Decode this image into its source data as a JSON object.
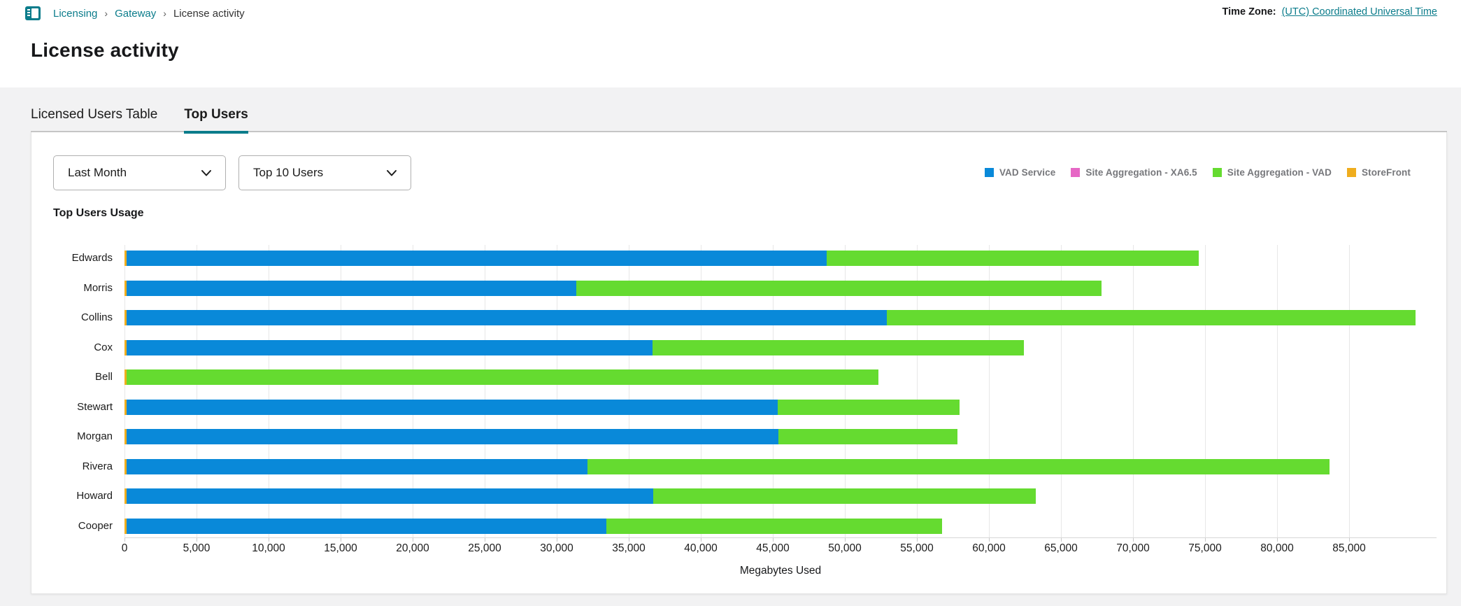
{
  "breadcrumb": {
    "separator": "›",
    "items": [
      {
        "label": "Licensing"
      },
      {
        "label": "Gateway"
      },
      {
        "label": "License activity"
      }
    ]
  },
  "timezone": {
    "label": "Time Zone:",
    "value": "(UTC) Coordinated Universal Time"
  },
  "page_title": "License activity",
  "tabs": [
    {
      "label": "Licensed Users Table",
      "active": false
    },
    {
      "label": "Top Users",
      "active": true
    }
  ],
  "filters": {
    "period": "Last Month",
    "top_users": "Top 10 Users"
  },
  "colors": {
    "accent_teal": "#0B7C8B",
    "vad_service_blue": "#0989D9",
    "site_agg_xa65_pink": "#E667C5",
    "site_agg_vad_green": "#65DB30",
    "storefront_amber": "#EFAD1E"
  },
  "chart_data": {
    "type": "bar",
    "orientation": "horizontal",
    "stacked": true,
    "title": "Top Users Usage",
    "xlabel": "Megabytes Used",
    "xlim": [
      0,
      91000
    ],
    "tick_interval": 5000,
    "last_labeled_tick": 85000,
    "grid": true,
    "legend_position": "top-right",
    "categories": [
      "Edwards",
      "Morris",
      "Collins",
      "Cox",
      "Bell",
      "Stewart",
      "Morgan",
      "Rivera",
      "Howard",
      "Cooper"
    ],
    "series": [
      {
        "name": "VAD Service",
        "color": "#0989D9",
        "values": [
          48600,
          31200,
          52750,
          36500,
          0,
          45200,
          45250,
          32000,
          36550,
          33300
        ]
      },
      {
        "name": "Site Aggregation - XA6.5",
        "color": "#E667C5",
        "values": [
          0,
          0,
          0,
          0,
          0,
          0,
          0,
          0,
          0,
          0
        ]
      },
      {
        "name": "Site Aggregation - VAD",
        "color": "#65DB30",
        "values": [
          25800,
          36450,
          36700,
          25800,
          52200,
          12600,
          12400,
          51500,
          26550,
          23300
        ]
      },
      {
        "name": "StoreFront",
        "color": "#EFAD1E",
        "values": [
          150,
          150,
          150,
          150,
          150,
          150,
          150,
          150,
          150,
          150
        ]
      }
    ],
    "stack_order": [
      "StoreFront",
      "VAD Service",
      "Site Aggregation - XA6.5",
      "Site Aggregation - VAD"
    ]
  }
}
